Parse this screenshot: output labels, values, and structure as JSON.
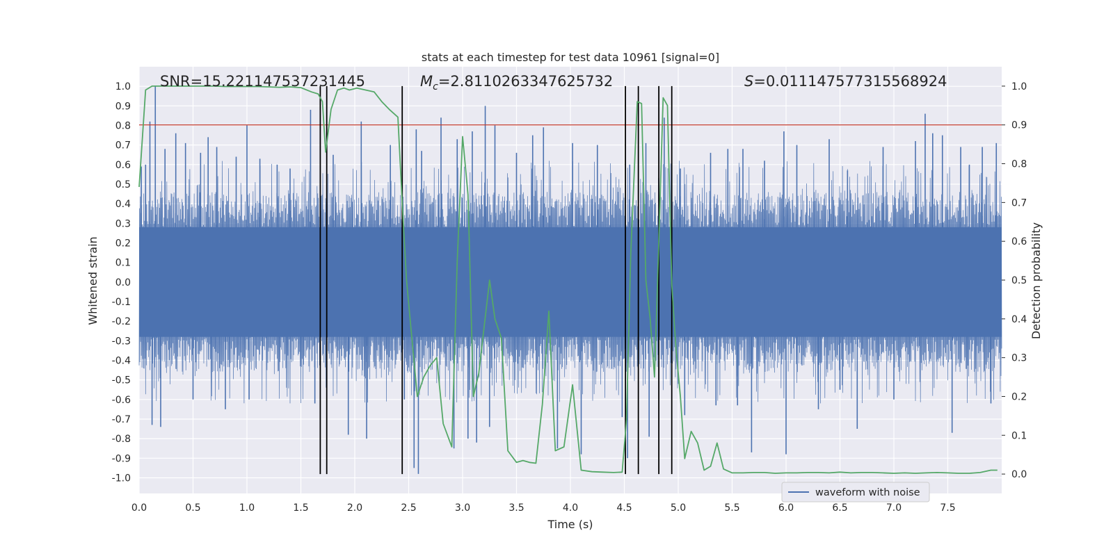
{
  "chart_data": {
    "type": "line",
    "title": "stats at each timestep for test data 10961 [signal=0]",
    "xlabel": "Time (s)",
    "ylabel": "Whitened strain",
    "y2label": "Detection probability",
    "xlim": [
      0.0,
      8.0
    ],
    "ylim": [
      -1.08,
      1.1
    ],
    "y2lim": [
      -0.05,
      1.05
    ],
    "xticks": [
      "0.0",
      "0.5",
      "1.0",
      "1.5",
      "2.0",
      "2.5",
      "3.0",
      "3.5",
      "4.0",
      "4.5",
      "5.0",
      "5.5",
      "6.0",
      "6.5",
      "7.0",
      "7.5"
    ],
    "yticks": [
      "1.0",
      "0.9",
      "0.8",
      "0.7",
      "0.6",
      "0.5",
      "0.4",
      "0.3",
      "0.2",
      "0.1",
      "0.0",
      "-0.1",
      "-0.2",
      "-0.3",
      "-0.4",
      "-0.5",
      "-0.6",
      "-0.7",
      "-0.8",
      "-0.9",
      "-1.0"
    ],
    "y2ticks": [
      "1.0",
      "0.9",
      "0.8",
      "0.7",
      "0.6",
      "0.5",
      "0.4",
      "0.3",
      "0.2",
      "0.1",
      "0.0"
    ],
    "annotations": {
      "snr": "SNR=15.221147537231445",
      "mc_symbol": "M",
      "mc_sub": "c",
      "mc_value": "=2.8110263347625732",
      "s_symbol": "S",
      "s_value": "=0.011147577315568924"
    },
    "threshold": {
      "value": 0.9,
      "axis": "right",
      "color": "#c0392b"
    },
    "detection_markers": [
      1.68,
      1.74,
      2.44,
      4.51,
      4.63,
      4.82,
      4.94
    ],
    "series": [
      {
        "name": "waveform with noise",
        "color": "#4c72b0",
        "axis": "left",
        "kind": "dense_noise",
        "duration_s": 8.0,
        "core_amplitude": 0.4,
        "spikes": [
          [
            0.02,
            0.59
          ],
          [
            0.06,
            0.6
          ],
          [
            0.1,
            0.82
          ],
          [
            0.12,
            -0.73
          ],
          [
            0.15,
            1.0
          ],
          [
            0.2,
            -0.74
          ],
          [
            0.24,
            0.68
          ],
          [
            0.34,
            0.76
          ],
          [
            0.43,
            0.71
          ],
          [
            0.5,
            -0.6
          ],
          [
            0.57,
            0.66
          ],
          [
            0.64,
            0.74
          ],
          [
            0.72,
            0.69
          ],
          [
            0.8,
            -0.65
          ],
          [
            0.9,
            0.64
          ],
          [
            1.0,
            0.8
          ],
          [
            1.02,
            -0.6
          ],
          [
            1.12,
            0.63
          ],
          [
            1.28,
            0.6
          ],
          [
            1.4,
            0.58
          ],
          [
            1.59,
            0.88
          ],
          [
            1.63,
            -0.62
          ],
          [
            1.8,
            0.65
          ],
          [
            1.94,
            -0.78
          ],
          [
            2.06,
            0.82
          ],
          [
            2.11,
            -0.8
          ],
          [
            2.33,
            0.7
          ],
          [
            2.46,
            -0.6
          ],
          [
            2.55,
            -0.95
          ],
          [
            2.57,
            0.78
          ],
          [
            2.59,
            -0.98
          ],
          [
            2.62,
            0.67
          ],
          [
            2.8,
            0.84
          ],
          [
            2.92,
            -0.85
          ],
          [
            2.95,
            0.73
          ],
          [
            3.05,
            -0.8
          ],
          [
            3.09,
            0.77
          ],
          [
            3.13,
            -0.82
          ],
          [
            3.21,
            0.9
          ],
          [
            3.25,
            -0.74
          ],
          [
            3.3,
            0.8
          ],
          [
            3.5,
            0.66
          ],
          [
            3.65,
            0.75
          ],
          [
            3.75,
            0.79
          ],
          [
            3.88,
            -0.85
          ],
          [
            4.02,
            0.71
          ],
          [
            4.1,
            -0.88
          ],
          [
            4.25,
            0.7
          ],
          [
            4.48,
            -0.69
          ],
          [
            4.53,
            -0.9
          ],
          [
            4.55,
            0.6
          ],
          [
            4.7,
            0.71
          ],
          [
            4.73,
            -0.79
          ],
          [
            4.87,
            0.84
          ],
          [
            5.02,
            0.58
          ],
          [
            5.06,
            -0.68
          ],
          [
            5.3,
            0.66
          ],
          [
            5.35,
            -0.63
          ],
          [
            5.46,
            0.68
          ],
          [
            5.55,
            -0.63
          ],
          [
            5.6,
            0.68
          ],
          [
            5.68,
            -0.87
          ],
          [
            5.8,
            0.62
          ],
          [
            5.98,
            0.77
          ],
          [
            6.0,
            -0.88
          ],
          [
            6.1,
            0.7
          ],
          [
            6.3,
            -0.65
          ],
          [
            6.4,
            0.73
          ],
          [
            6.5,
            -0.55
          ],
          [
            6.57,
            0.57
          ],
          [
            6.66,
            -0.75
          ],
          [
            6.9,
            0.69
          ],
          [
            7.0,
            -0.6
          ],
          [
            7.2,
            0.72
          ],
          [
            7.29,
            0.86
          ],
          [
            7.36,
            0.76
          ],
          [
            7.45,
            0.75
          ],
          [
            7.54,
            -0.77
          ],
          [
            7.62,
            0.69
          ],
          [
            7.7,
            0.6
          ],
          [
            7.82,
            0.69
          ],
          [
            7.9,
            -0.62
          ],
          [
            7.95,
            0.71
          ]
        ]
      },
      {
        "name": "detection probability",
        "color": "#55a868",
        "axis": "right",
        "kind": "line",
        "x": [
          0.0,
          0.06,
          0.12,
          0.2,
          0.3,
          0.4,
          0.5,
          0.6,
          0.7,
          0.8,
          0.9,
          1.0,
          1.1,
          1.2,
          1.3,
          1.4,
          1.5,
          1.6,
          1.66,
          1.7,
          1.73,
          1.78,
          1.84,
          1.9,
          1.95,
          2.02,
          2.1,
          2.18,
          2.25,
          2.32,
          2.4,
          2.44,
          2.48,
          2.53,
          2.58,
          2.64,
          2.7,
          2.76,
          2.82,
          2.9,
          2.95,
          3.0,
          3.05,
          3.1,
          3.15,
          3.2,
          3.25,
          3.3,
          3.36,
          3.42,
          3.5,
          3.56,
          3.62,
          3.68,
          3.74,
          3.8,
          3.86,
          3.94,
          4.02,
          4.1,
          4.2,
          4.3,
          4.4,
          4.48,
          4.52,
          4.56,
          4.62,
          4.66,
          4.7,
          4.74,
          4.78,
          4.82,
          4.86,
          4.9,
          4.94,
          4.98,
          5.02,
          5.06,
          5.12,
          5.18,
          5.24,
          5.3,
          5.36,
          5.42,
          5.5,
          5.6,
          5.7,
          5.8,
          5.9,
          6.0,
          6.1,
          6.2,
          6.3,
          6.4,
          6.5,
          6.6,
          6.7,
          6.8,
          6.9,
          7.0,
          7.1,
          7.2,
          7.3,
          7.4,
          7.5,
          7.6,
          7.7,
          7.8,
          7.9,
          7.96
        ],
        "y": [
          0.74,
          0.99,
          1.0,
          1.0,
          1.0,
          1.0,
          1.0,
          1.0,
          1.0,
          0.999,
          0.999,
          0.999,
          0.999,
          0.998,
          0.997,
          0.998,
          0.996,
          0.985,
          0.98,
          0.96,
          0.83,
          0.94,
          0.99,
          0.995,
          0.99,
          0.995,
          0.99,
          0.985,
          0.96,
          0.94,
          0.92,
          0.7,
          0.5,
          0.35,
          0.2,
          0.25,
          0.28,
          0.3,
          0.13,
          0.07,
          0.55,
          0.87,
          0.72,
          0.2,
          0.26,
          0.38,
          0.5,
          0.4,
          0.35,
          0.06,
          0.03,
          0.035,
          0.03,
          0.028,
          0.18,
          0.42,
          0.06,
          0.07,
          0.23,
          0.01,
          0.006,
          0.005,
          0.004,
          0.005,
          0.14,
          0.57,
          0.96,
          0.955,
          0.5,
          0.4,
          0.25,
          0.6,
          0.97,
          0.95,
          0.49,
          0.32,
          0.2,
          0.04,
          0.11,
          0.08,
          0.01,
          0.02,
          0.08,
          0.013,
          0.003,
          0.003,
          0.004,
          0.004,
          0.002,
          0.003,
          0.003,
          0.004,
          0.004,
          0.003,
          0.005,
          0.003,
          0.004,
          0.004,
          0.003,
          0.002,
          0.003,
          0.002,
          0.003,
          0.004,
          0.003,
          0.002,
          0.002,
          0.004,
          0.01,
          0.01
        ]
      }
    ],
    "legend": {
      "entries": [
        "waveform with noise"
      ],
      "placement": "lower-center-right"
    }
  }
}
